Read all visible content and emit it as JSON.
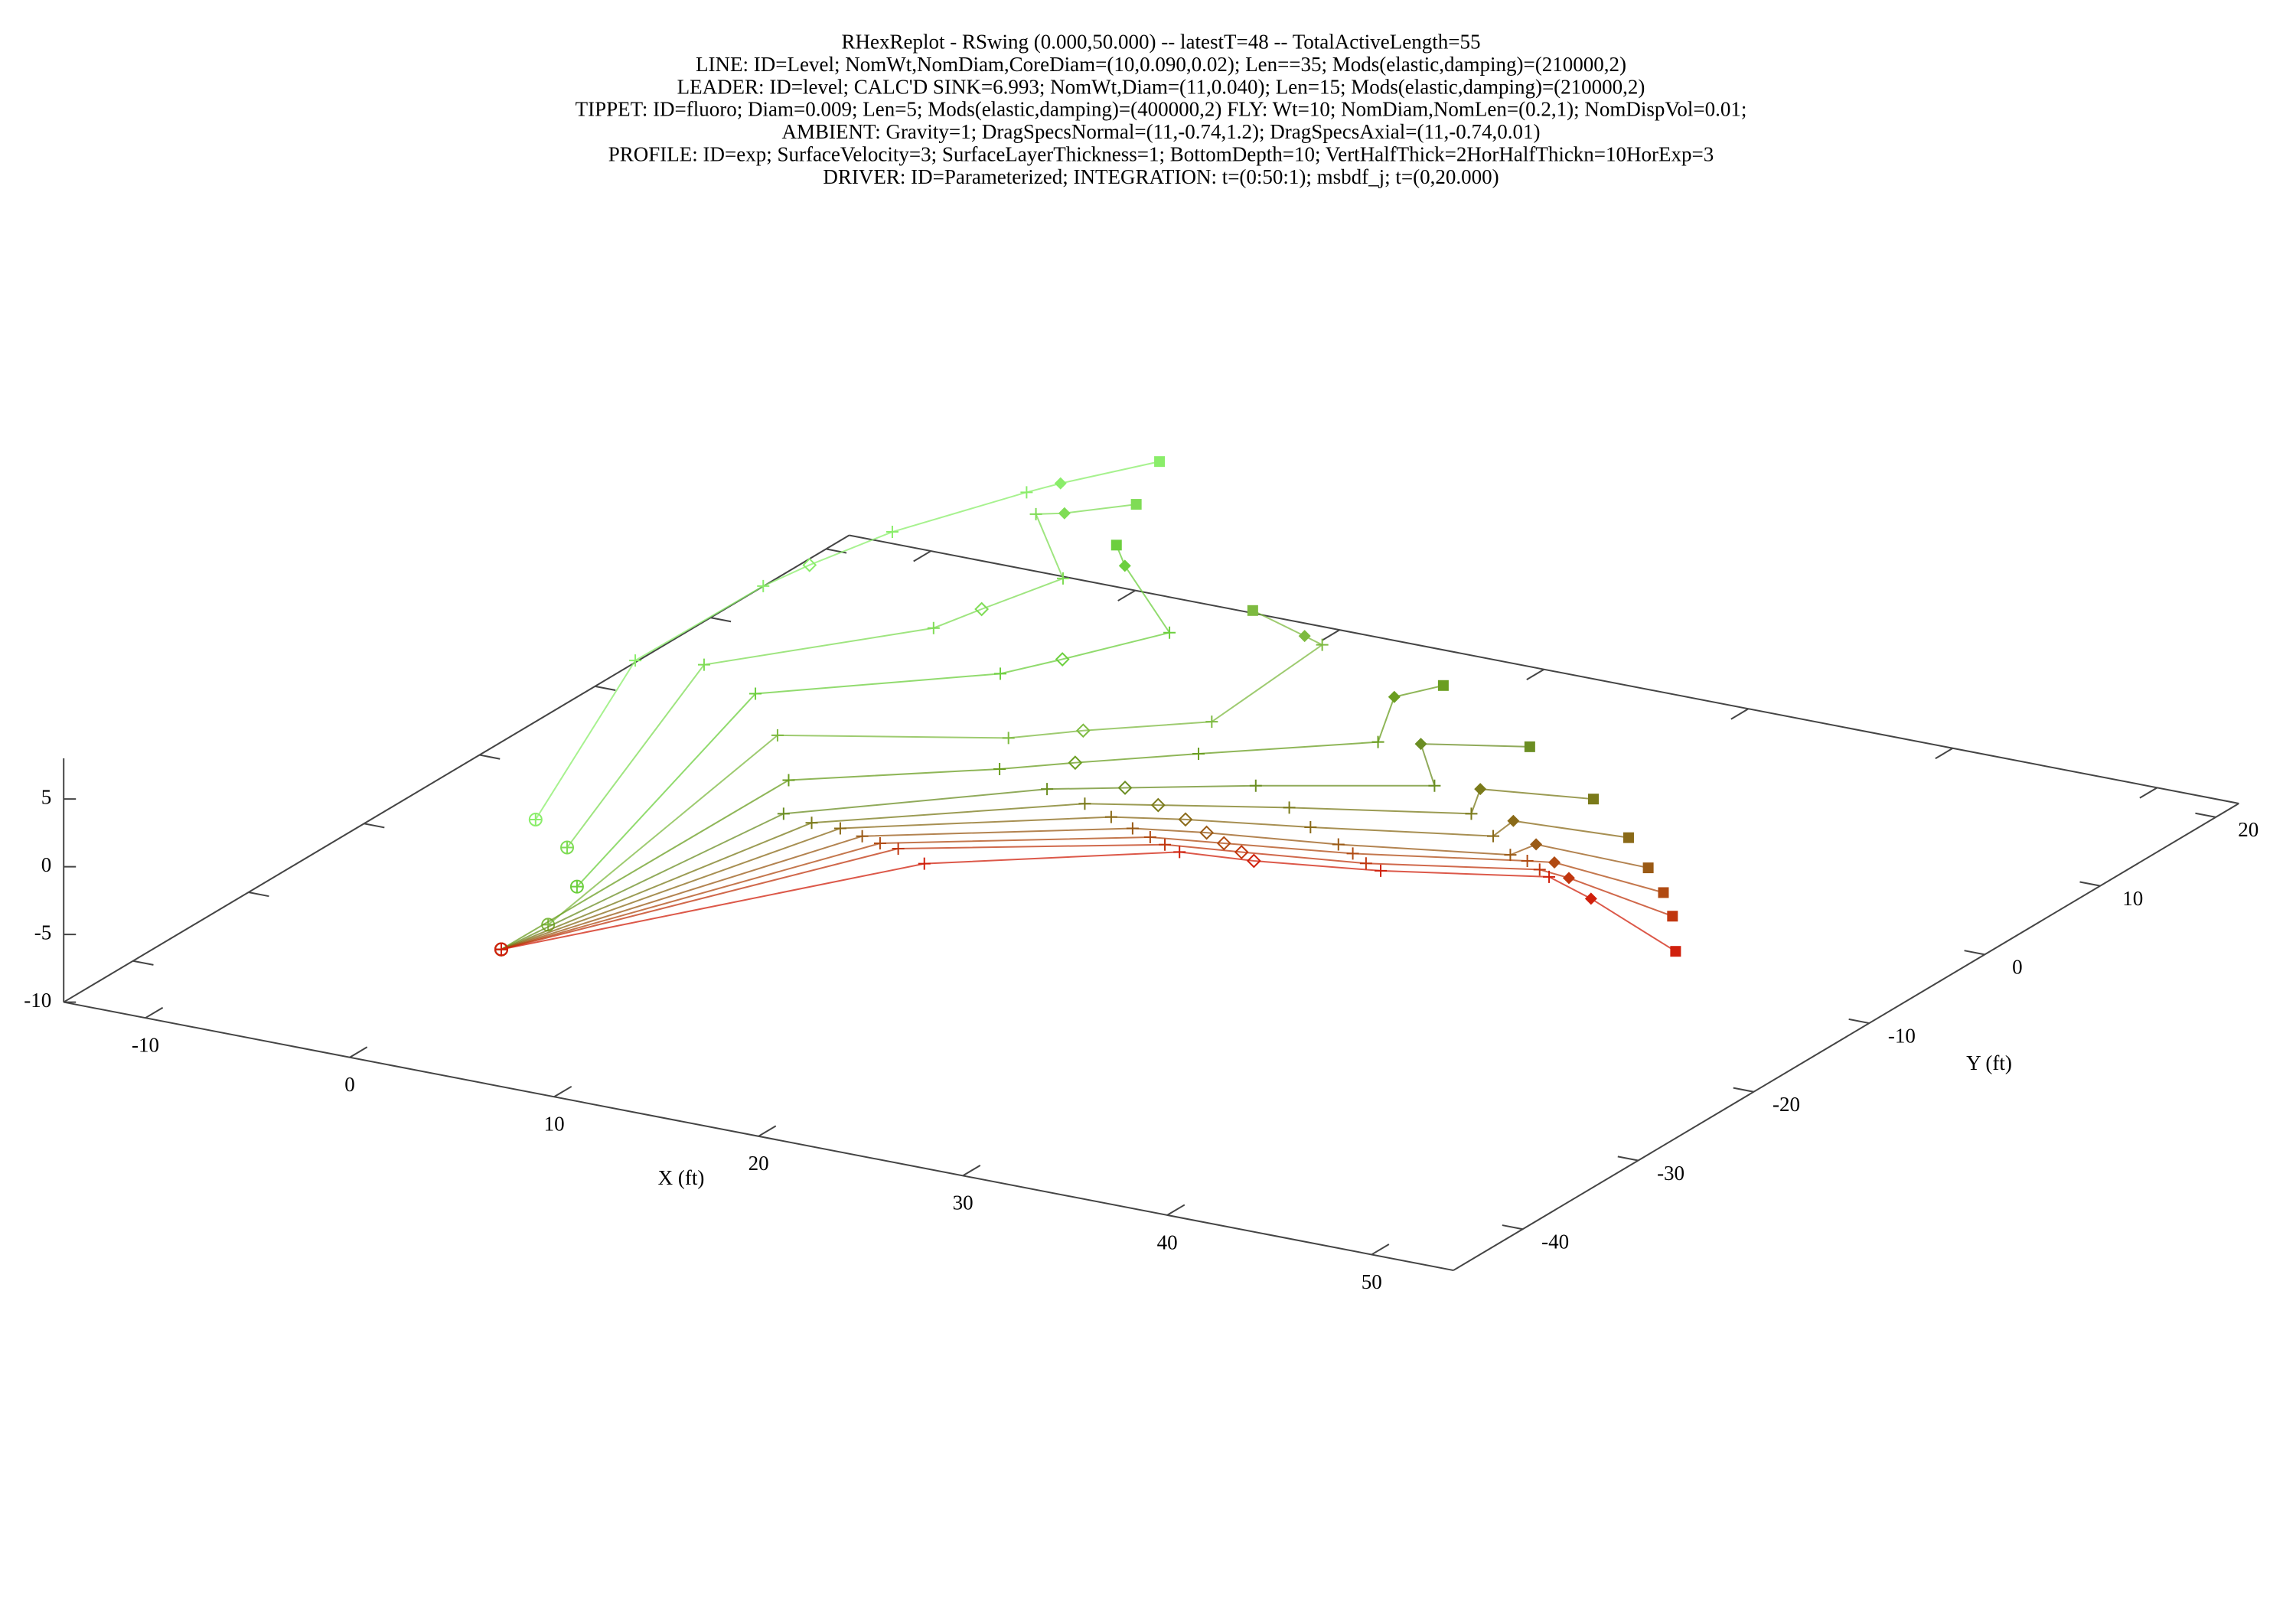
{
  "chart_data": {
    "type": "line3d",
    "title": [
      "RHexReplot - RSwing (0.000,50.000) -- latestT=48 -- TotalActiveLength=55",
      "LINE: ID=Level;  NomWt,NomDiam,CoreDiam=(10,0.090,0.02);  Len==35;  Mods(elastic,damping)=(210000,2)",
      "LEADER: ID=level; CALC'D SINK=6.993;  NomWt,Diam=(11,0.040);  Len=15;  Mods(elastic,damping)=(210000,2)",
      "TIPPET: ID=fluoro;  Diam=0.009;  Len=5;  Mods(elastic,damping)=(400000,2)  FLY: Wt=10;  NomDiam,NomLen=(0.2,1);  NomDispVol=0.01;",
      "AMBIENT: Gravity=1; DragSpecsNormal=(11,-0.74,1.2); DragSpecsAxial=(11,-0.74,0.01)",
      "PROFILE: ID=exp; SurfaceVelocity=3; SurfaceLayerThickness=1; BottomDepth=10; VertHalfThick=2HorHalfThickn=10HorExp=3",
      "DRIVER: ID=Parameterized;  INTEGRATION: t=(0:50:1); msbdf_j; t=(0,20.000)"
    ],
    "x_label": "X (ft)",
    "y_label": "Y (ft)",
    "xlim": [
      -14,
      54
    ],
    "ylim": [
      -46,
      22
    ],
    "zlim": [
      -10,
      8
    ],
    "xticks": [
      -10,
      0,
      10,
      20,
      30,
      40,
      50
    ],
    "yticks": [
      -40,
      -30,
      -20,
      -10,
      0,
      10,
      20
    ],
    "zticks": [
      -10,
      -5,
      0,
      5
    ],
    "series": [
      {
        "color": "#8aed6a",
        "x": [
          0.5,
          -5.7,
          -5.6,
          -5.2,
          -4.2,
          -1.7,
          -1.0,
          1.3
        ],
        "y": [
          -30.8,
          -11.2,
          -0.3,
          3.0,
          8.4,
          15.6,
          17.3,
          21.8
        ],
        "z": [
          0,
          0,
          0,
          0,
          0,
          0,
          0,
          0
        ]
      },
      {
        "color": "#7fdc55",
        "x": [
          3.4,
          -2.9,
          3.3,
          3.9,
          5.0,
          0.0,
          1.0,
          3.1
        ],
        "y": [
          -33.2,
          -10.2,
          -1.3,
          1.8,
          6.9,
          13.4,
          14.1,
          16.6
        ],
        "z": [
          0,
          0,
          0,
          0,
          0,
          0,
          0,
          0
        ]
      },
      {
        "color": "#6ccf3e",
        "x": [
          6.2,
          0.8,
          8.6,
          10.0,
          12.3,
          6.5,
          4.9
        ],
        "y": [
          -37.3,
          -12.3,
          -4.9,
          -2.0,
          3.2,
          9.6,
          11.7
        ],
        "z": [
          0,
          0,
          0,
          0,
          0,
          0,
          0
        ]
      },
      {
        "color": "#7dba40",
        "x": [
          7.5,
          4.2,
          12.9,
          15.2,
          19.4,
          18.7,
          17.5,
          14.0
        ],
        "y": [
          -42.1,
          -16.4,
          -11.8,
          -9.4,
          -5.7,
          5.1,
          5.7,
          7.4
        ],
        "z": [
          0,
          0,
          0,
          0,
          0,
          0,
          0,
          0
        ]
      },
      {
        "color": "#6a9e20",
        "x": [
          7.3,
          7.4,
          14.5,
          16.9,
          20.9,
          26.8,
          24.6,
          25.7
        ],
        "y": [
          -45.8,
          -21.1,
          -15.4,
          -13.1,
          -9.5,
          -4.4,
          0.9,
          3.2
        ],
        "z": [
          0,
          0,
          0,
          0,
          0,
          0,
          0,
          0
        ]
      },
      {
        "color": "#6b8e23",
        "x": [
          7.3,
          9.3,
          17.5,
          20.3,
          25.0,
          31.6,
          28.5,
          32.7
        ],
        "y": [
          -45.8,
          -24.9,
          -16.6,
          -14.8,
          -11.8,
          -8.0,
          -3.7,
          -1.7
        ],
        "z": [
          0,
          0,
          0,
          0,
          0,
          0,
          0,
          0
        ]
      },
      {
        "color": "#7a7a1a",
        "x": [
          7.3,
          10.9,
          19.8,
          22.6,
          27.6,
          34.7,
          33.5,
          38.3
        ],
        "y": [
          -45.8,
          -25.3,
          -17.4,
          -16.0,
          -13.5,
          -10.3,
          -7.4,
          -6.1
        ],
        "z": [
          0,
          0,
          0,
          0,
          0,
          0,
          0,
          0
        ]
      },
      {
        "color": "#8a6a18",
        "x": [
          7.3,
          12.3,
          21.6,
          24.5,
          29.6,
          36.9,
          36.7,
          42.0
        ],
        "y": [
          -45.8,
          -25.3,
          -18.3,
          -17.0,
          -15.2,
          -12.3,
          -10.2,
          -9.6
        ],
        "z": [
          0,
          0,
          0,
          0,
          0,
          0,
          0,
          0
        ]
      },
      {
        "color": "#9a5a15",
        "x": [
          7.3,
          13.6,
          23.1,
          26.1,
          31.7,
          38.7,
          39.0,
          44.6
        ],
        "y": [
          -45.8,
          -25.7,
          -19.1,
          -18.0,
          -16.5,
          -14.0,
          -12.3,
          -12.5
        ],
        "z": [
          0,
          0,
          0,
          0,
          0,
          0,
          0,
          0
        ]
      },
      {
        "color": "#b04a12",
        "x": [
          7.3,
          14.7,
          24.3,
          27.4,
          32.8,
          39.7,
          40.8,
          46.7
        ],
        "y": [
          -45.8,
          -26.1,
          -19.7,
          -18.8,
          -17.2,
          -14.3,
          -13.9,
          -14.9
        ],
        "z": [
          0,
          0,
          0,
          0,
          0,
          0,
          0,
          0
        ]
      },
      {
        "color": "#c0360f",
        "x": [
          7.3,
          15.7,
          25.3,
          28.6,
          33.9,
          40.7,
          42.3,
          48.5
        ],
        "y": [
          -45.8,
          -26.3,
          -20.2,
          -19.4,
          -18.0,
          -15.0,
          -15.3,
          -17.3
        ],
        "z": [
          0,
          0,
          0,
          0,
          0,
          0,
          0,
          0
        ]
      },
      {
        "color": "#d0200c",
        "x": [
          7.3,
          17.6,
          26.3,
          29.6,
          34.9,
          41.5,
          44.4,
          50.8
        ],
        "y": [
          -45.8,
          -27.4,
          -20.7,
          -20.1,
          -18.5,
          -15.6,
          -17.1,
          -21.1
        ],
        "z": [
          0,
          0,
          0,
          0,
          0,
          0,
          0,
          0
        ]
      }
    ]
  }
}
